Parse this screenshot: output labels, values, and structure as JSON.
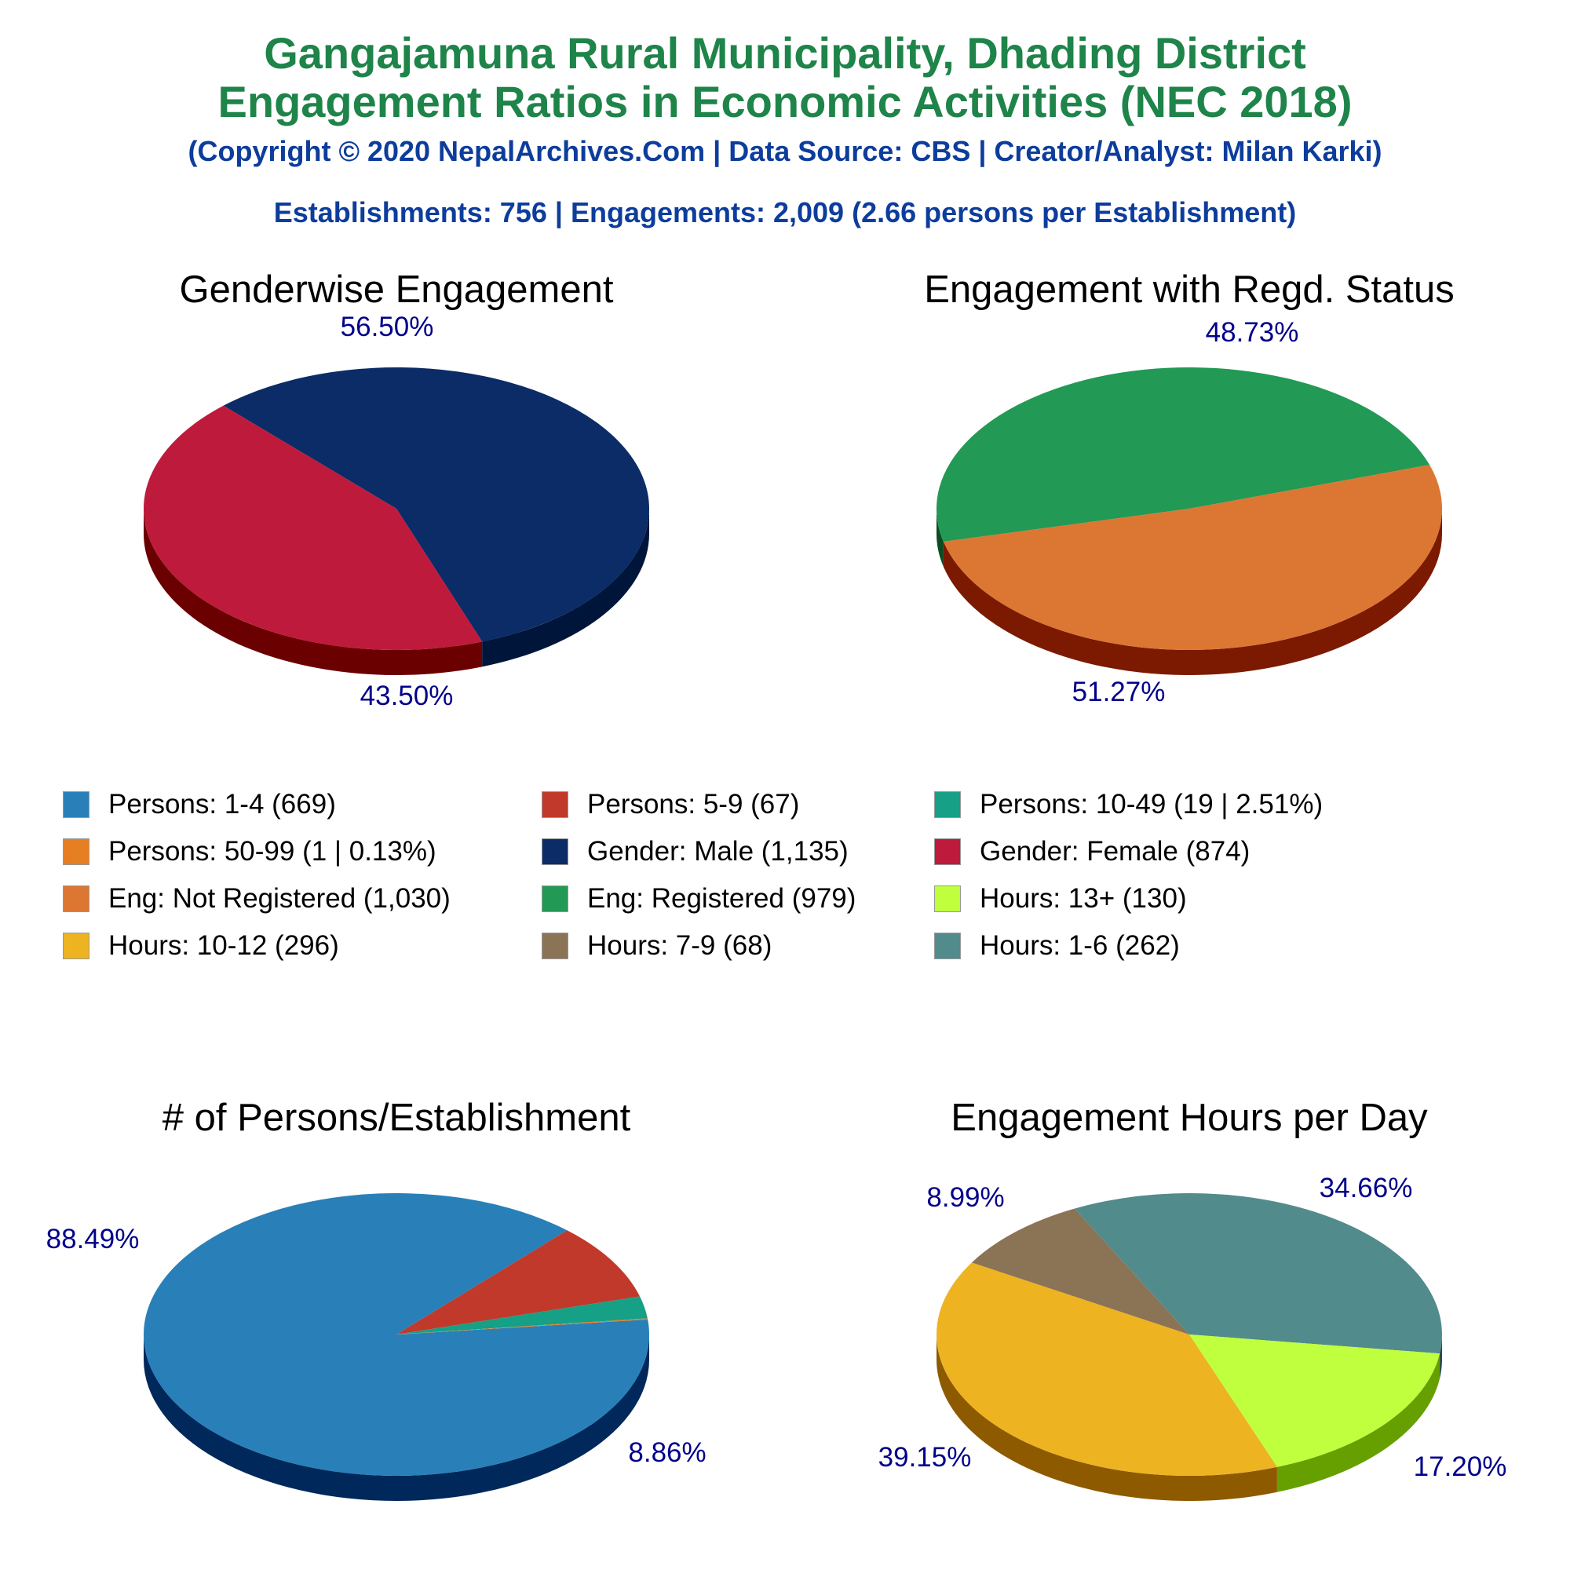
{
  "header": {
    "title_line1": "Gangajamuna Rural Municipality, Dhading District",
    "title_line2": "Engagement Ratios in Economic Activities (NEC 2018)",
    "copyright": "(Copyright © 2020 NepalArchives.Com | Data Source: CBS | Creator/Analyst: Milan Karki)",
    "stats": "Establishments: 756 | Engagements: 2,009 (2.66 persons per Establishment)"
  },
  "legend": [
    {
      "label": "Persons: 1-4 (669)",
      "color": "#2980b9"
    },
    {
      "label": "Persons: 5-9 (67)",
      "color": "#c0392b"
    },
    {
      "label": "Persons: 10-49 (19 | 2.51%)",
      "color": "#16a085"
    },
    {
      "label": "Persons: 50-99 (1 | 0.13%)",
      "color": "#e67e22"
    },
    {
      "label": "Gender: Male (1,135)",
      "color": "#0b2c66"
    },
    {
      "label": "Gender: Female (874)",
      "color": "#be1a3c"
    },
    {
      "label": "Eng: Not Registered (1,030)",
      "color": "#dc7633"
    },
    {
      "label": "Eng: Registered (979)",
      "color": "#229954"
    },
    {
      "label": "Hours: 13+ (130)",
      "color": "#c0ff3e"
    },
    {
      "label": "Hours: 10-12 (296)",
      "color": "#edb321"
    },
    {
      "label": "Hours: 7-9 (68)",
      "color": "#8b7355"
    },
    {
      "label": "Hours: 1-6 (262)",
      "color": "#528b8b"
    }
  ],
  "chart_data": [
    {
      "type": "pie",
      "title": "Genderwise Engagement",
      "slices": [
        {
          "name": "Gender: Male",
          "value": 1135,
          "percent_label": "56.50%",
          "color": "#0b2c66",
          "side": "#00153a"
        },
        {
          "name": "Gender: Female",
          "value": 874,
          "percent_label": "43.50%",
          "color": "#be1a3c",
          "side": "#6b0000"
        }
      ]
    },
    {
      "type": "pie",
      "title": "Engagement with Regd. Status",
      "slices": [
        {
          "name": "Eng: Registered",
          "value": 979,
          "percent_label": "48.73%",
          "color": "#229954",
          "side": "#0b4d22"
        },
        {
          "name": "Eng: Not Registered",
          "value": 1030,
          "percent_label": "51.27%",
          "color": "#dc7633",
          "side": "#7b1a00"
        }
      ]
    },
    {
      "type": "pie",
      "title": "# of Persons/Establishment",
      "slices": [
        {
          "name": "Persons: 1-4",
          "value": 669,
          "percent_label": "88.49%",
          "color": "#2980b9",
          "side": "#00285a"
        },
        {
          "name": "Persons: 5-9",
          "value": 67,
          "percent_label": "8.86%",
          "color": "#c0392b",
          "side": "#6b0000"
        },
        {
          "name": "Persons: 10-49",
          "value": 19,
          "percent_label": "",
          "color": "#16a085",
          "side": "#004a35"
        },
        {
          "name": "Persons: 50-99",
          "value": 1,
          "percent_label": "",
          "color": "#e67e22",
          "side": "#7a3a00"
        }
      ]
    },
    {
      "type": "pie",
      "title": "Engagement Hours per Day",
      "slices": [
        {
          "name": "Hours: 1-6",
          "value": 262,
          "percent_label": "34.66%",
          "color": "#528b8b",
          "side": "#2a4a4a"
        },
        {
          "name": "Hours: 13+",
          "value": 130,
          "percent_label": "17.20%",
          "color": "#c0ff3e",
          "side": "#66a000"
        },
        {
          "name": "Hours: 10-12",
          "value": 296,
          "percent_label": "39.15%",
          "color": "#edb321",
          "side": "#8e5a00"
        },
        {
          "name": "Hours: 7-9",
          "value": 68,
          "percent_label": "8.99%",
          "color": "#8b7355",
          "side": "#4a3a28"
        }
      ]
    }
  ]
}
